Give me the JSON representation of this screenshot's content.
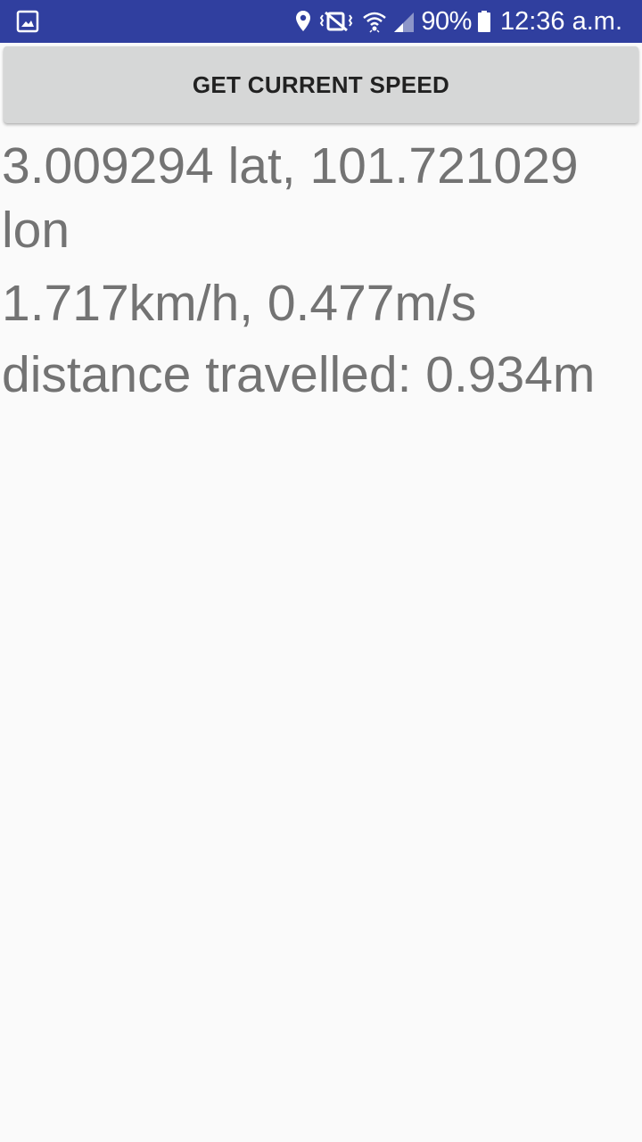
{
  "status_bar": {
    "battery_percent": "90%",
    "time": "12:36 a.m.",
    "icons": [
      "gallery-icon",
      "location-icon",
      "vibrate-mute-icon",
      "wifi-icon",
      "signal-icon",
      "battery-icon"
    ],
    "background_color": "#303f9f"
  },
  "main": {
    "button_label": "GET CURRENT SPEED",
    "coords_text": "3.009294 lat, 101.721029 lon",
    "speed_text": "1.717km/h, 0.477m/s",
    "distance_text": "distance travelled: 0.934m"
  }
}
